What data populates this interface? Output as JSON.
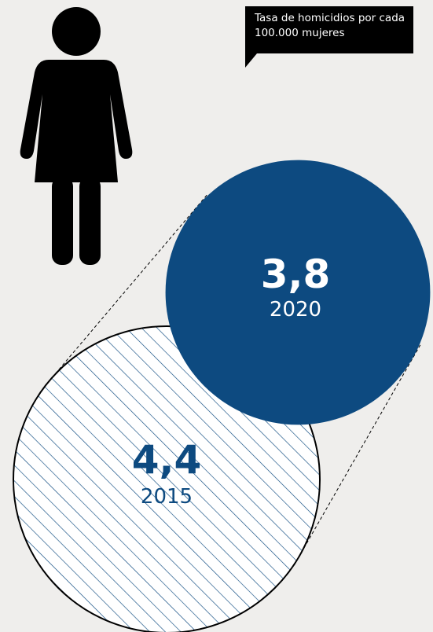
{
  "chart_data": {
    "type": "bubble",
    "annotation": "Tasa de homicidios por cada 100.000 mujeres",
    "categories": [
      "2015",
      "2020"
    ],
    "values": [
      4.4,
      3.8
    ],
    "value_labels": [
      "4,4",
      "3,8"
    ],
    "color": "#0d4a80"
  }
}
